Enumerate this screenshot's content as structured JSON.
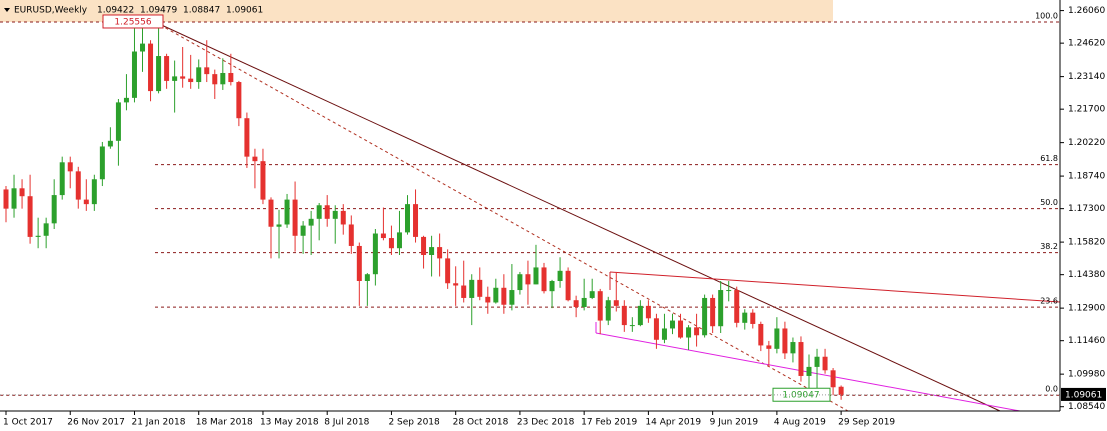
{
  "chart_data": {
    "type": "candlestick",
    "title": "EURUSD,Weekly",
    "up_color": "#2ca02c",
    "down_color": "#e5312f",
    "categories": [
      "1 Oct 2017",
      null,
      null,
      null,
      null,
      null,
      null,
      null,
      "26 Nov 2017",
      null,
      null,
      null,
      null,
      null,
      null,
      null,
      "21 Jan 2018",
      null,
      null,
      null,
      null,
      null,
      null,
      null,
      "18 Mar 2018",
      null,
      null,
      null,
      null,
      null,
      null,
      null,
      "13 May 2018",
      null,
      null,
      null,
      null,
      null,
      null,
      null,
      "8 Jul 2018",
      null,
      null,
      null,
      null,
      null,
      null,
      null,
      "2 Sep 2018",
      null,
      null,
      null,
      null,
      null,
      null,
      null,
      "28 Oct 2018",
      null,
      null,
      null,
      null,
      null,
      null,
      null,
      "23 Dec 2018",
      null,
      null,
      null,
      null,
      null,
      null,
      null,
      "17 Feb 2019",
      null,
      null,
      null,
      null,
      null,
      null,
      null,
      "14 Apr 2019",
      null,
      null,
      null,
      null,
      null,
      null,
      null,
      "9 Jun 2019",
      null,
      null,
      null,
      null,
      null,
      null,
      null,
      "4 Aug 2019",
      null,
      null,
      null,
      null,
      null,
      null,
      null,
      "29 Sep 2019"
    ],
    "open": [
      1.1815,
      1.173,
      1.182,
      1.1785,
      1.1605,
      1.161,
      1.1665,
      1.179,
      1.1935,
      1.1895,
      1.177,
      1.175,
      1.186,
      1.2005,
      1.203,
      1.22,
      1.222,
      1.2425,
      1.246,
      1.225,
      1.2405,
      1.2295,
      1.2315,
      1.2305,
      1.229,
      1.2355,
      1.2325,
      1.228,
      1.233,
      1.229,
      1.213,
      1.196,
      1.194,
      1.177,
      1.165,
      1.166,
      1.177,
      1.161,
      1.1655,
      1.1685,
      1.1745,
      1.1685,
      1.172,
      1.166,
      1.1565,
      1.141,
      1.144,
      1.162,
      1.16,
      1.1555,
      1.1625,
      1.175,
      1.1605,
      1.1525,
      1.156,
      1.151,
      1.14,
      1.139,
      1.1335,
      1.1415,
      1.134,
      1.1315,
      1.138,
      1.1305,
      1.137,
      1.144,
      1.1395,
      1.147,
      1.1365,
      1.141,
      1.1455,
      1.1325,
      1.1295,
      1.1335,
      1.1365,
      1.1235,
      1.1325,
      1.13,
      1.1215,
      1.1215,
      1.13,
      1.1245,
      1.115,
      1.12,
      1.1235,
      1.116,
      1.1205,
      1.117,
      1.1335,
      1.121,
      1.137,
      1.137,
      1.1225,
      1.127,
      1.122,
      1.1125,
      1.111,
      1.12,
      1.109,
      1.114,
      1.099,
      1.103,
      1.1075,
      1.1015,
      1.09422
    ],
    "high": [
      1.183,
      1.188,
      1.186,
      1.188,
      1.169,
      1.169,
      1.186,
      1.196,
      1.196,
      1.1915,
      1.186,
      1.188,
      1.2025,
      1.209,
      1.2215,
      1.2325,
      1.254,
      1.2556,
      1.2475,
      1.2555,
      1.2415,
      1.2385,
      1.2445,
      1.241,
      1.239,
      1.2475,
      1.2345,
      1.2395,
      1.2415,
      1.2295,
      1.2155,
      1.1995,
      1.1995,
      1.178,
      1.1725,
      1.1795,
      1.185,
      1.1675,
      1.172,
      1.1755,
      1.179,
      1.1745,
      1.175,
      1.17,
      1.158,
      1.1445,
      1.164,
      1.1735,
      1.1655,
      1.172,
      1.179,
      1.1815,
      1.161,
      1.161,
      1.162,
      1.155,
      1.1475,
      1.15,
      1.144,
      1.147,
      1.1385,
      1.142,
      1.144,
      1.1485,
      1.145,
      1.15,
      1.157,
      1.149,
      1.1415,
      1.1515,
      1.147,
      1.1345,
      1.142,
      1.142,
      1.1375,
      1.134,
      1.145,
      1.1325,
      1.125,
      1.1325,
      1.1325,
      1.1265,
      1.1265,
      1.1265,
      1.1265,
      1.1215,
      1.1265,
      1.135,
      1.135,
      1.141,
      1.141,
      1.1385,
      1.1285,
      1.1285,
      1.123,
      1.1145,
      1.125,
      1.123,
      1.116,
      1.1165,
      1.1085,
      1.111,
      1.111,
      1.1025,
      1.09479
    ],
    "low": [
      1.167,
      1.169,
      1.173,
      1.1575,
      1.1555,
      1.1555,
      1.164,
      1.177,
      1.182,
      1.173,
      1.172,
      1.172,
      1.183,
      1.1995,
      1.192,
      1.2165,
      1.22,
      1.2335,
      1.2205,
      1.224,
      1.226,
      1.2155,
      1.2265,
      1.226,
      1.226,
      1.229,
      1.2215,
      1.2255,
      1.2275,
      1.2095,
      1.191,
      1.182,
      1.175,
      1.151,
      1.151,
      1.1645,
      1.154,
      1.153,
      1.1525,
      1.159,
      1.165,
      1.1575,
      1.1615,
      1.153,
      1.13,
      1.13,
      1.139,
      1.159,
      1.1525,
      1.1525,
      1.1615,
      1.158,
      1.1465,
      1.143,
      1.143,
      1.1375,
      1.13,
      1.1315,
      1.1215,
      1.1325,
      1.1265,
      1.131,
      1.1265,
      1.128,
      1.135,
      1.1305,
      1.1395,
      1.1355,
      1.129,
      1.138,
      1.132,
      1.125,
      1.128,
      1.133,
      1.1175,
      1.1215,
      1.1275,
      1.1185,
      1.1185,
      1.121,
      1.1225,
      1.111,
      1.1135,
      1.1175,
      1.1155,
      1.1105,
      1.112,
      1.116,
      1.118,
      1.118,
      1.132,
      1.1205,
      1.1195,
      1.12,
      1.11,
      1.103,
      1.109,
      1.1065,
      1.105,
      1.0965,
      1.0925,
      1.0925,
      1.1,
      1.0905,
      1.08847
    ],
    "close": [
      1.173,
      1.182,
      1.1785,
      1.1605,
      1.161,
      1.1665,
      1.179,
      1.1935,
      1.1895,
      1.177,
      1.175,
      1.186,
      1.2005,
      1.203,
      1.22,
      1.222,
      1.2425,
      1.246,
      1.225,
      1.2405,
      1.2295,
      1.2315,
      1.2305,
      1.229,
      1.2355,
      1.2325,
      1.228,
      1.233,
      1.229,
      1.213,
      1.196,
      1.194,
      1.177,
      1.165,
      1.166,
      1.177,
      1.161,
      1.1655,
      1.1685,
      1.1745,
      1.1685,
      1.172,
      1.166,
      1.1565,
      1.141,
      1.144,
      1.162,
      1.16,
      1.1555,
      1.1625,
      1.175,
      1.1605,
      1.1525,
      1.156,
      1.151,
      1.14,
      1.139,
      1.1335,
      1.1415,
      1.134,
      1.1315,
      1.138,
      1.1305,
      1.137,
      1.144,
      1.1395,
      1.147,
      1.1365,
      1.141,
      1.1455,
      1.1325,
      1.1295,
      1.1335,
      1.1365,
      1.1235,
      1.1325,
      1.13,
      1.1215,
      1.1215,
      1.13,
      1.1245,
      1.115,
      1.12,
      1.1235,
      1.116,
      1.1205,
      1.117,
      1.1335,
      1.121,
      1.137,
      1.137,
      1.1225,
      1.127,
      1.122,
      1.1125,
      1.111,
      1.12,
      1.109,
      1.114,
      1.099,
      1.103,
      1.1075,
      1.1015,
      1.094,
      1.09061
    ],
    "ylim": [
      1.0835,
      1.2644
    ],
    "yticks": [
      {
        "value": 1.2606,
        "label": "1.26060"
      },
      {
        "value": 1.2462,
        "label": "1.24620"
      },
      {
        "value": 1.2314,
        "label": "1.23140"
      },
      {
        "value": 1.217,
        "label": "1.21700"
      },
      {
        "value": 1.2022,
        "label": "1.20220"
      },
      {
        "value": 1.1874,
        "label": "1.18740"
      },
      {
        "value": 1.173,
        "label": "1.17300"
      },
      {
        "value": 1.1582,
        "label": "1.15820"
      },
      {
        "value": 1.1438,
        "label": "1.14380"
      },
      {
        "value": 1.129,
        "label": "1.12900"
      },
      {
        "value": 1.1146,
        "label": "1.11460"
      },
      {
        "value": 1.0998,
        "label": "1.09980"
      },
      {
        "value": 1.0854,
        "label": "1.08540"
      }
    ],
    "fibonacci": {
      "high": 1.25556,
      "low": 1.09047,
      "color": "#8b1a1a",
      "levels": [
        {
          "value": 100,
          "label": "100.0"
        },
        61.8,
        {
          "value": 50,
          "label": "50.0"
        },
        38.2,
        23.6,
        {
          "value": 0,
          "label": "0.0"
        }
      ]
    }
  }
}
